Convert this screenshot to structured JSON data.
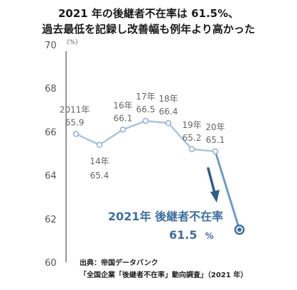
{
  "title_lines": [
    "2021 年の後継者不在率は 61.5%、",
    "過去最低を記録し改善幅も例年より高かった"
  ],
  "highlight": {
    "line1": "2021年 後継者不在率",
    "value": "61.5",
    "unit": "%"
  },
  "source": {
    "line1": "出典：帝国データバンク",
    "line2": "「全国企業「後継者不在率」動向調査」（2021 年）"
  },
  "chart_data": {
    "type": "line",
    "title": "2021 年の後継者不在率は 61.5%、過去最低を記録し改善幅も例年より高かった",
    "ylabel": "(%)",
    "xlabel": "",
    "ylim": [
      60,
      70
    ],
    "yticks": [
      60,
      62,
      64,
      66,
      68,
      70
    ],
    "grid": false,
    "legend": "none",
    "x": [
      "2011年",
      "14年",
      "16年",
      "17年",
      "18年",
      "19年",
      "20年",
      "2021年"
    ],
    "values": [
      65.9,
      65.4,
      66.1,
      66.5,
      66.4,
      65.2,
      65.1,
      61.5
    ],
    "point_labels": [
      {
        "year": "2011年",
        "value": "65.9",
        "pos": "above"
      },
      {
        "year": "14年",
        "value": "65.4",
        "pos": "below"
      },
      {
        "year": "16年",
        "value": "66.1",
        "pos": "above"
      },
      {
        "year": "17年",
        "value": "66.5",
        "pos": "above"
      },
      {
        "year": "18年",
        "value": "66.4",
        "pos": "above"
      },
      {
        "year": "19年",
        "value": "65.2",
        "pos": "above"
      },
      {
        "year": "20年",
        "value": "65.1",
        "pos": "above"
      }
    ],
    "colors": {
      "line": "#a9c4de",
      "last_segment": "#6f9ac6",
      "point_fill": "#ffffff",
      "point_stroke": "#8fb1d3",
      "final_point": "#3f6f9f",
      "arrow": "#2f5d8a"
    }
  }
}
